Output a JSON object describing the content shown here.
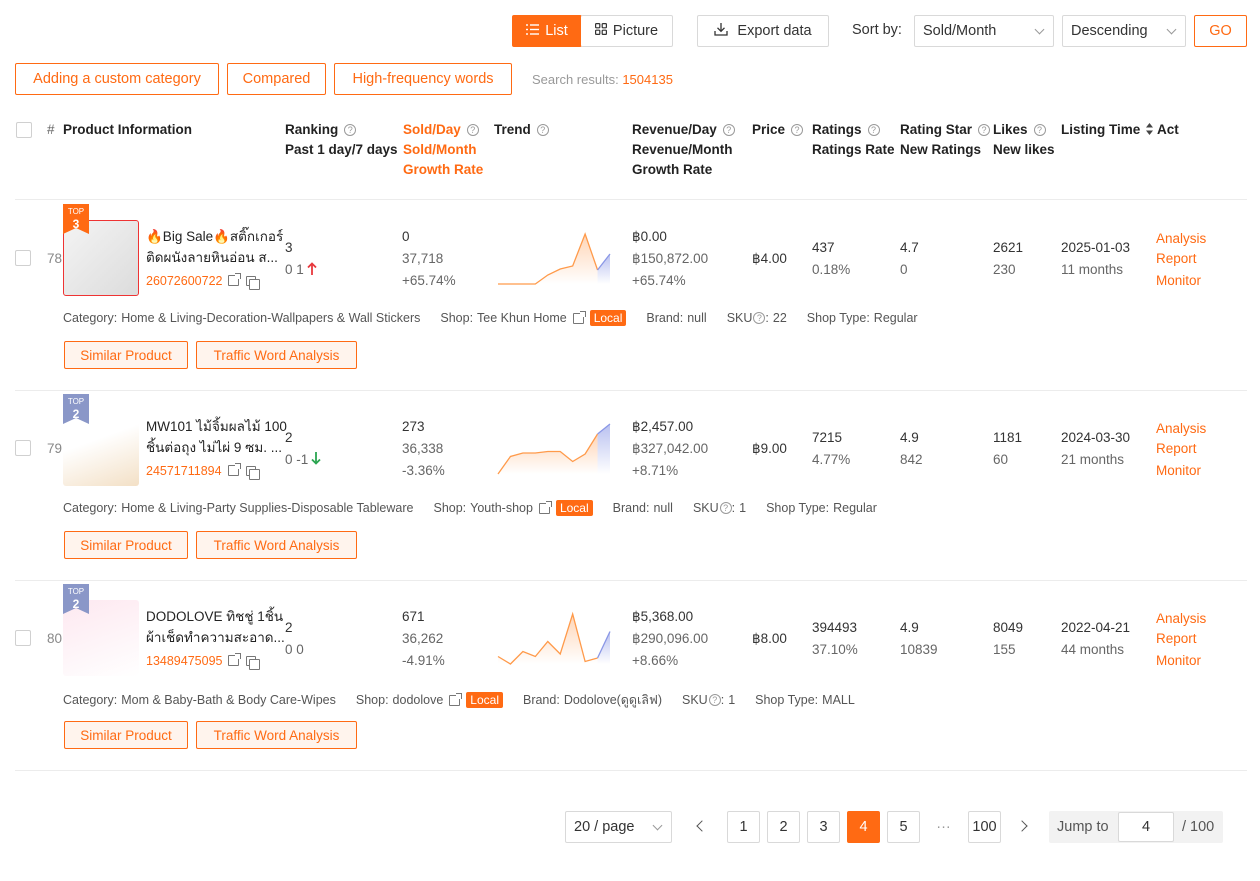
{
  "toolbar": {
    "list_label": "List",
    "picture_label": "Picture",
    "export_label": "Export data",
    "sort_by_label": "Sort by:",
    "sort_value": "Sold/Month",
    "order_value": "Descending",
    "go_label": "GO"
  },
  "filters": {
    "custom_category": "Adding a custom category",
    "compared": "Compared",
    "high_freq": "High-frequency words",
    "search_results_label": "Search results:",
    "search_results_value": "1504135"
  },
  "columns": {
    "hash": "#",
    "product_info": "Product Information",
    "ranking": "Ranking",
    "ranking_sub": "Past 1 day/7 days",
    "sold_day": "Sold/Day",
    "sold_month": "Sold/Month",
    "growth_rate": "Growth Rate",
    "trend": "Trend",
    "revenue_day": "Revenue/Day",
    "revenue_month": "Revenue/Month",
    "rev_growth": "Growth Rate",
    "price": "Price",
    "ratings": "Ratings",
    "ratings_rate": "Ratings Rate",
    "rating_star": "Rating Star",
    "new_ratings": "New Ratings",
    "likes": "Likes",
    "new_likes": "New likes",
    "listing_time": "Listing Time",
    "act": "Act"
  },
  "rows": [
    {
      "index": "78",
      "badge_rank": "3",
      "badge_top": "TOP",
      "badge_color": "#ff6a13",
      "title1": "🔥Big Sale🔥สติ๊กเกอร์",
      "title2": "ติดผนังลายหินอ่อน ส...",
      "product_id": "26072600722",
      "rank_main": "3",
      "rank_sub": "0  1",
      "rank_arrow": "up",
      "sold_day": "0",
      "sold_month": "37,718",
      "growth": "+65.74%",
      "rev_day": "฿0.00",
      "rev_month": "฿150,872.00",
      "rev_growth": "+65.74%",
      "price": "฿4.00",
      "ratings": "437",
      "ratings_rate": "0.18%",
      "rating_star": "4.7",
      "new_ratings": "0",
      "likes": "2621",
      "new_likes": "230",
      "listing_date": "2025-01-03",
      "listing_age": "11 months",
      "act1": "Analysis",
      "act2": "Report",
      "act3": "Monitor",
      "category_label": "Category:",
      "category": "Home & Living-Decoration-Wallpapers & Wall Stickers",
      "shop_label": "Shop:",
      "shop": "Tee Khun Home",
      "local": "Local",
      "brand_label": "Brand:",
      "brand": "null",
      "sku_label": "SKU",
      "sku": "22",
      "shop_type_label": "Shop Type:",
      "shop_type": "Regular",
      "similar": "Similar Product",
      "traffic": "Traffic Word Analysis",
      "trend": [
        0.0,
        0.0,
        0.0,
        0.0,
        0.18,
        0.3,
        0.36,
        1.0,
        0.28,
        0.6
      ]
    },
    {
      "index": "79",
      "badge_rank": "2",
      "badge_top": "TOP",
      "badge_color": "#8a97c8",
      "title1": "MW101 ไม้จิ้มผลไม้ 100",
      "title2": "ชิ้นต่อถุง ไม่ไผ่ 9 ซม. ...",
      "product_id": "24571711894",
      "rank_main": "2",
      "rank_sub": "0  -1",
      "rank_arrow": "down",
      "sold_day": "273",
      "sold_month": "36,338",
      "growth": "-3.36%",
      "rev_day": "฿2,457.00",
      "rev_month": "฿327,042.00",
      "rev_growth": "+8.71%",
      "price": "฿9.00",
      "ratings": "7215",
      "ratings_rate": "4.77%",
      "rating_star": "4.9",
      "new_ratings": "842",
      "likes": "1181",
      "new_likes": "60",
      "listing_date": "2024-03-30",
      "listing_age": "21 months",
      "act1": "Analysis",
      "act2": "Report",
      "act3": "Monitor",
      "category_label": "Category:",
      "category": "Home & Living-Party Supplies-Disposable Tableware",
      "shop_label": "Shop:",
      "shop": "Youth-shop",
      "local": "Local",
      "brand_label": "Brand:",
      "brand": "null",
      "sku_label": "SKU",
      "sku": "1",
      "shop_type_label": "Shop Type:",
      "shop_type": "Regular",
      "similar": "Similar Product",
      "traffic": "Traffic Word Analysis",
      "trend": [
        0.0,
        0.35,
        0.42,
        0.42,
        0.45,
        0.45,
        0.25,
        0.4,
        0.8,
        1.0
      ]
    },
    {
      "index": "80",
      "badge_rank": "2",
      "badge_top": "TOP",
      "badge_color": "#8a97c8",
      "title1": "DODOLOVE ทิชชู่ 1ชิ้น",
      "title2": "ผ้าเช็ดทำความสะอาด...",
      "product_id": "13489475095",
      "rank_main": "2",
      "rank_sub": "0  0",
      "rank_arrow": "",
      "sold_day": "671",
      "sold_month": "36,262",
      "growth": "-4.91%",
      "rev_day": "฿5,368.00",
      "rev_month": "฿290,096.00",
      "rev_growth": "+8.66%",
      "price": "฿8.00",
      "ratings": "394493",
      "ratings_rate": "37.10%",
      "rating_star": "4.9",
      "new_ratings": "10839",
      "likes": "8049",
      "new_likes": "155",
      "listing_date": "2022-04-21",
      "listing_age": "44 months",
      "act1": "Analysis",
      "act2": "Report",
      "act3": "Monitor",
      "category_label": "Category:",
      "category": "Mom & Baby-Bath & Body Care-Wipes",
      "shop_label": "Shop:",
      "shop": "dodolove",
      "local": "Local",
      "brand_label": "Brand:",
      "brand": "Dodolove(ดูดูเลิฟ)",
      "sku_label": "SKU",
      "sku": "1",
      "shop_type_label": "Shop Type:",
      "shop_type": "MALL",
      "similar": "Similar Product",
      "traffic": "Traffic Word Analysis",
      "trend": [
        0.15,
        0.0,
        0.25,
        0.15,
        0.45,
        0.2,
        1.0,
        0.05,
        0.12,
        0.65
      ]
    }
  ],
  "pagination": {
    "page_size": "20 / page",
    "pages": [
      "1",
      "2",
      "3",
      "4",
      "5",
      "···",
      "100"
    ],
    "current": "4",
    "jump_label": "Jump to",
    "jump_value": "4",
    "total": "/ 100"
  },
  "colors": {
    "accent": "#ff6a13",
    "up": "#e8383d",
    "down": "#2aa550",
    "trend_line": "#ff9a4a",
    "trend_tail": "#8a97e6"
  }
}
